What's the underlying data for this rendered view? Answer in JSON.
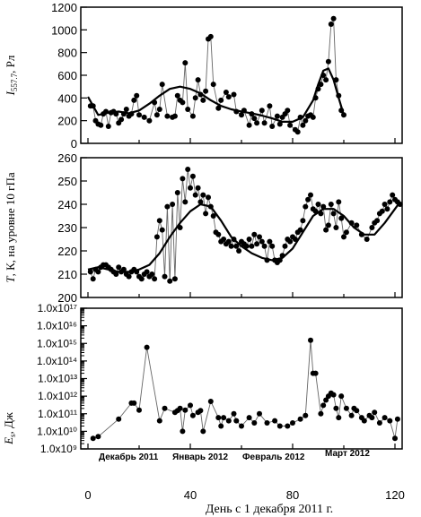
{
  "figure": {
    "xlabel": "День с 1 декабря 2011 г.",
    "xticks": [
      0,
      40,
      80,
      120
    ],
    "months": [
      "Декабрь 2011",
      "Январь 2012",
      "Февраль 2012",
      "Март 2012"
    ]
  },
  "chart_data": [
    {
      "type": "line",
      "ylabel_main": "I",
      "ylabel_sub": "557.7",
      "ylabel_unit": ", Рл",
      "ylim": [
        0,
        1200
      ],
      "yticks": [
        0,
        200,
        400,
        600,
        800,
        1000,
        1200
      ],
      "xlim": [
        0,
        125
      ],
      "series": [
        {
          "type": "points",
          "x": [
            1,
            2,
            3,
            4,
            5,
            6,
            7,
            8,
            9,
            10,
            11,
            12,
            13,
            14,
            15,
            16,
            17,
            18,
            19,
            20,
            22,
            24,
            26,
            27,
            28,
            29,
            31,
            33,
            34,
            35,
            36,
            37,
            38,
            39,
            41,
            42,
            43,
            44,
            45,
            46,
            47,
            48,
            49,
            51,
            52,
            54,
            55,
            57,
            58,
            60,
            61,
            63,
            64,
            65,
            66,
            68,
            69,
            71,
            72,
            74,
            75,
            76,
            77,
            78,
            79,
            81,
            82,
            83,
            84,
            85,
            86,
            87,
            88,
            89,
            90,
            91,
            92,
            93,
            94,
            95,
            96,
            97,
            98,
            99,
            100
          ],
          "y": [
            330,
            330,
            200,
            170,
            160,
            260,
            280,
            150,
            270,
            280,
            260,
            180,
            210,
            260,
            300,
            240,
            260,
            380,
            420,
            250,
            230,
            200,
            360,
            250,
            300,
            520,
            240,
            230,
            240,
            420,
            380,
            360,
            710,
            300,
            240,
            400,
            560,
            430,
            380,
            460,
            920,
            940,
            520,
            310,
            380,
            450,
            410,
            430,
            280,
            250,
            290,
            160,
            260,
            220,
            180,
            290,
            180,
            330,
            150,
            240,
            170,
            230,
            260,
            290,
            160,
            120,
            100,
            230,
            160,
            200,
            240,
            250,
            230,
            400,
            480,
            520,
            600,
            560,
            720,
            1050,
            1100,
            560,
            420,
            290,
            250
          ]
        },
        {
          "type": "fit",
          "x": [
            0,
            4,
            8,
            12,
            16,
            20,
            24,
            28,
            32,
            36,
            40,
            44,
            48,
            52,
            56,
            60,
            64,
            68,
            72,
            76,
            80,
            84,
            88,
            90,
            92,
            94,
            96,
            98,
            100
          ],
          "y": [
            410,
            250,
            270,
            280,
            265,
            290,
            350,
            420,
            480,
            500,
            480,
            440,
            380,
            330,
            300,
            280,
            265,
            245,
            220,
            190,
            190,
            230,
            380,
            520,
            640,
            660,
            560,
            400,
            250
          ]
        }
      ]
    },
    {
      "type": "line",
      "ylabel_main": "T",
      "ylabel_unit": ", К, на уровне 10 гПа",
      "ylim": [
        200,
        260
      ],
      "yticks": [
        200,
        210,
        220,
        230,
        240,
        250,
        260
      ],
      "xlim": [
        0,
        125
      ],
      "series": [
        {
          "type": "points",
          "x": [
            1,
            2,
            3,
            4,
            5,
            6,
            7,
            8,
            9,
            10,
            11,
            12,
            13,
            14,
            15,
            16,
            17,
            18,
            19,
            20,
            21,
            22,
            23,
            24,
            25,
            26,
            27,
            28,
            29,
            30,
            31,
            32,
            33,
            34,
            35,
            36,
            37,
            38,
            39,
            40,
            41,
            42,
            43,
            44,
            45,
            46,
            47,
            48,
            49,
            50,
            51,
            52,
            53,
            54,
            55,
            56,
            57,
            58,
            59,
            60,
            61,
            62,
            63,
            64,
            65,
            66,
            67,
            68,
            69,
            70,
            71,
            72,
            73,
            74,
            75,
            76,
            77,
            78,
            79,
            80,
            81,
            82,
            83,
            84,
            85,
            86,
            87,
            88,
            89,
            90,
            91,
            92,
            93,
            94,
            95,
            96,
            97,
            98,
            99,
            100,
            101,
            103,
            105,
            107,
            109,
            111,
            112,
            113,
            114,
            115,
            116,
            117,
            118,
            119,
            120,
            121,
            122
          ],
          "y": [
            211,
            208,
            212,
            211,
            213,
            214,
            214,
            213,
            212,
            211,
            210,
            213,
            211,
            212,
            210,
            209,
            211,
            212,
            211,
            209,
            208,
            210,
            211,
            209,
            210,
            208,
            226,
            233,
            229,
            209,
            239,
            207,
            240,
            208,
            245,
            230,
            251,
            241,
            255,
            247,
            252,
            244,
            247,
            241,
            244,
            236,
            243,
            239,
            235,
            228,
            227,
            224,
            225,
            223,
            224,
            222,
            225,
            222,
            220,
            224,
            223,
            222,
            225,
            222,
            227,
            223,
            226,
            224,
            222,
            216,
            224,
            222,
            216,
            215,
            216,
            218,
            222,
            225,
            224,
            226,
            225,
            228,
            229,
            233,
            239,
            242,
            244,
            238,
            237,
            240,
            236,
            239,
            229,
            231,
            240,
            236,
            230,
            241,
            234,
            226,
            228,
            232,
            231,
            227,
            225,
            230,
            232,
            233,
            236,
            237,
            240,
            238,
            241,
            244,
            242,
            241,
            240
          ]
        },
        {
          "type": "fit",
          "x": [
            0,
            4,
            8,
            12,
            16,
            20,
            24,
            28,
            32,
            36,
            40,
            44,
            48,
            52,
            56,
            60,
            64,
            68,
            72,
            76,
            80,
            84,
            88,
            92,
            96,
            100,
            104,
            108,
            112,
            116,
            120,
            122
          ],
          "y": [
            212,
            213,
            212,
            211,
            211,
            212,
            214,
            219,
            226,
            232,
            237,
            240,
            239,
            233,
            226,
            222,
            219,
            217,
            216,
            217,
            221,
            228,
            235,
            238,
            238,
            235,
            230,
            227,
            227,
            232,
            238,
            241
          ]
        }
      ]
    },
    {
      "type": "scatter",
      "ylabel_main": "E",
      "ylabel_sub": "s",
      "ylabel_unit": ", Дж",
      "log_scale": true,
      "ylim": [
        1000000000.0,
        1e+17
      ],
      "ytick_labels": [
        "1.0x10⁹",
        "1.0x10¹⁰",
        "1.0x10¹¹",
        "1.0x10¹²",
        "1.0x10¹³",
        "1.0x10¹⁴",
        "1.0x10¹⁵",
        "1.0x10¹⁶",
        "1.0x10¹⁷"
      ],
      "xlim": [
        0,
        125
      ],
      "series": [
        {
          "type": "points",
          "x": [
            2,
            4,
            12,
            17,
            18,
            20,
            23,
            28,
            30,
            34,
            35,
            36,
            37,
            38,
            40,
            41,
            43,
            44,
            45,
            48,
            51,
            52,
            53,
            55,
            57,
            58,
            60,
            63,
            65,
            67,
            70,
            73,
            75,
            78,
            80,
            83,
            85,
            87,
            88,
            89,
            91,
            92,
            93,
            94,
            95,
            96,
            97,
            98,
            99,
            101,
            103,
            104,
            105,
            107,
            108,
            110,
            111,
            112,
            114,
            116,
            118,
            120,
            121
          ],
          "y": [
            4000000000.0,
            5000000000.0,
            50000000000.0,
            400000000000.0,
            400000000000.0,
            160000000000.0,
            600000000000000.0,
            40000000000.0,
            200000000000.0,
            120000000000.0,
            150000000000.0,
            200000000000.0,
            10000000000.0,
            160000000000.0,
            300000000000.0,
            80000000000.0,
            120000000000.0,
            150000000000.0,
            10000000000.0,
            500000000000.0,
            60000000000.0,
            20000000000.0,
            60000000000.0,
            40000000000.0,
            100000000000.0,
            40000000000.0,
            20000000000.0,
            60000000000.0,
            30000000000.0,
            100000000000.0,
            30000000000.0,
            40000000000.0,
            20000000000.0,
            20000000000.0,
            30000000000.0,
            50000000000.0,
            80000000000.0,
            1500000000000000.0,
            20000000000000.0,
            20000000000000.0,
            100000000000.0,
            300000000000.0,
            600000000000.0,
            1000000000000.0,
            1500000000000.0,
            1200000000000.0,
            200000000000.0,
            60000000000.0,
            1000000000000.0,
            200000000000.0,
            80000000000.0,
            200000000000.0,
            150000000000.0,
            60000000000.0,
            40000000000.0,
            80000000000.0,
            60000000000.0,
            120000000000.0,
            30000000000.0,
            60000000000.0,
            40000000000.0,
            4000000000.0,
            50000000000.0
          ]
        }
      ]
    }
  ]
}
